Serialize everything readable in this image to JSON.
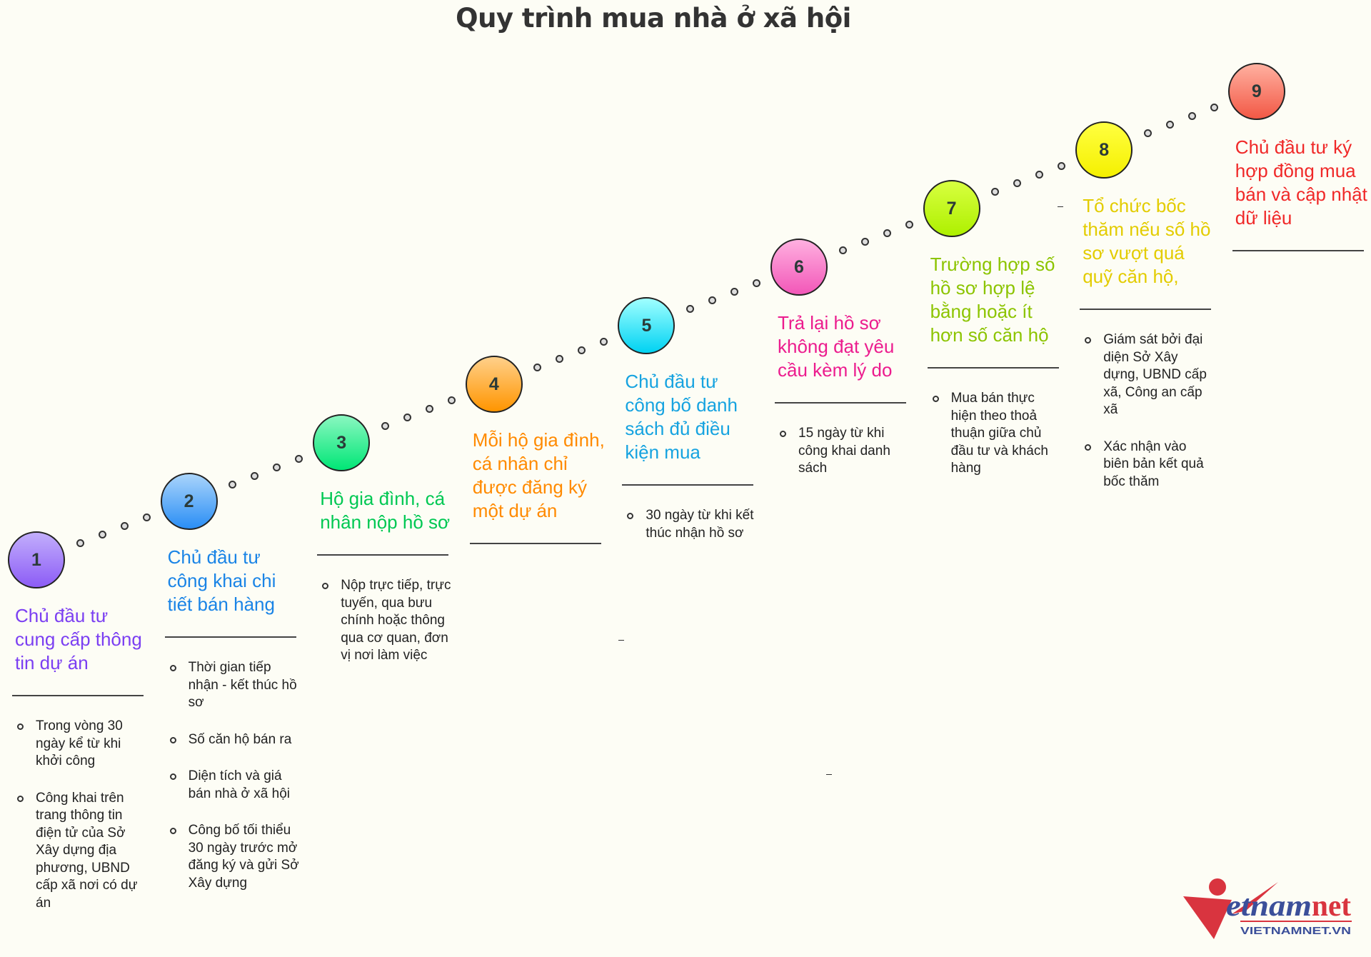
{
  "title": "Quy trình mua nhà ở xã hội",
  "logo": {
    "wordmark": "vietnamnet",
    "url_text": "VIETNAMNET.VN",
    "colors": {
      "red": "#d9343f",
      "blue": "#3b4f9a"
    }
  },
  "steps": [
    {
      "number": "1",
      "color": "#7b3ff2",
      "fill": [
        "#c2aefc",
        "#8c5cf6"
      ],
      "heading": "Chủ đầu tư cung cấp thông tin dự án",
      "bullets": [
        "Trong vòng 30 ngày kể từ khi khởi công",
        "Công khai trên trang thông tin điện tử của Sở Xây dựng địa phương, UBND cấp xã nơi có dự án"
      ]
    },
    {
      "number": "2",
      "color": "#1a84e6",
      "fill": [
        "#a9d4fb",
        "#2a8ef5"
      ],
      "heading": "Chủ đầu tư công khai chi tiết bán hàng",
      "bullets": [
        "Thời gian tiếp nhận - kết thúc hồ sơ",
        "Số căn hộ bán ra",
        "Diện tích và giá bán nhà ở xã hội",
        "Công bố tối thiểu 30 ngày trước mở đăng ký và gửi Sở Xây dựng"
      ]
    },
    {
      "number": "3",
      "color": "#00c853",
      "fill": [
        "#8af7c0",
        "#00e676"
      ],
      "heading": "Hộ gia đình, cá nhân nộp hồ sơ",
      "bullets": [
        "Nộp trực tiếp, trực tuyến, qua bưu chính hoặc thông qua cơ quan, đơn vị nơi làm việc"
      ]
    },
    {
      "number": "4",
      "color": "#ff8a00",
      "fill": [
        "#ffd08a",
        "#ff9500"
      ],
      "heading": "Mỗi hộ gia đình, cá nhân chỉ được đăng ký một dự án",
      "bullets": []
    },
    {
      "number": "5",
      "color": "#16a3e0",
      "fill": [
        "#a0ffff",
        "#00d2f2"
      ],
      "heading": "Chủ đầu tư công bố danh sách đủ điều kiện mua",
      "bullets": [
        "30 ngày từ khi kết thúc nhận hồ sơ"
      ]
    },
    {
      "number": "6",
      "color": "#ec1c8e",
      "fill": [
        "#ffb0e0",
        "#f257b8"
      ],
      "heading": "Trả lại hồ sơ không đạt yêu cầu kèm lý do",
      "bullets": [
        "15 ngày từ khi công khai danh sách"
      ]
    },
    {
      "number": "7",
      "color": "#8cc400",
      "fill": [
        "#d8ff40",
        "#aef000"
      ],
      "heading": "Trường hợp số hồ sơ hợp lệ bằng hoặc ít hơn số căn hộ",
      "bullets": [
        "Mua bán thực hiện theo thoả thuận giữa chủ đầu tư và khách hàng"
      ]
    },
    {
      "number": "8",
      "color": "#e3cc00",
      "fill": [
        "#ffff40",
        "#f5f000"
      ],
      "heading": "Tổ chức bốc thăm nếu số hồ sơ vượt quá quỹ căn hộ,",
      "bullets": [
        "Giám sát bởi đại diện Sở Xây dựng, UBND cấp xã, Công an cấp xã",
        "Xác nhận vào biên bản kết quả bốc thăm"
      ]
    },
    {
      "number": "9",
      "color": "#f02828",
      "fill": [
        "#ffb0a0",
        "#f25845"
      ],
      "heading": "Chủ đầu tư ký hợp đồng mua bán và cập nhật dữ liệu",
      "bullets": []
    }
  ]
}
